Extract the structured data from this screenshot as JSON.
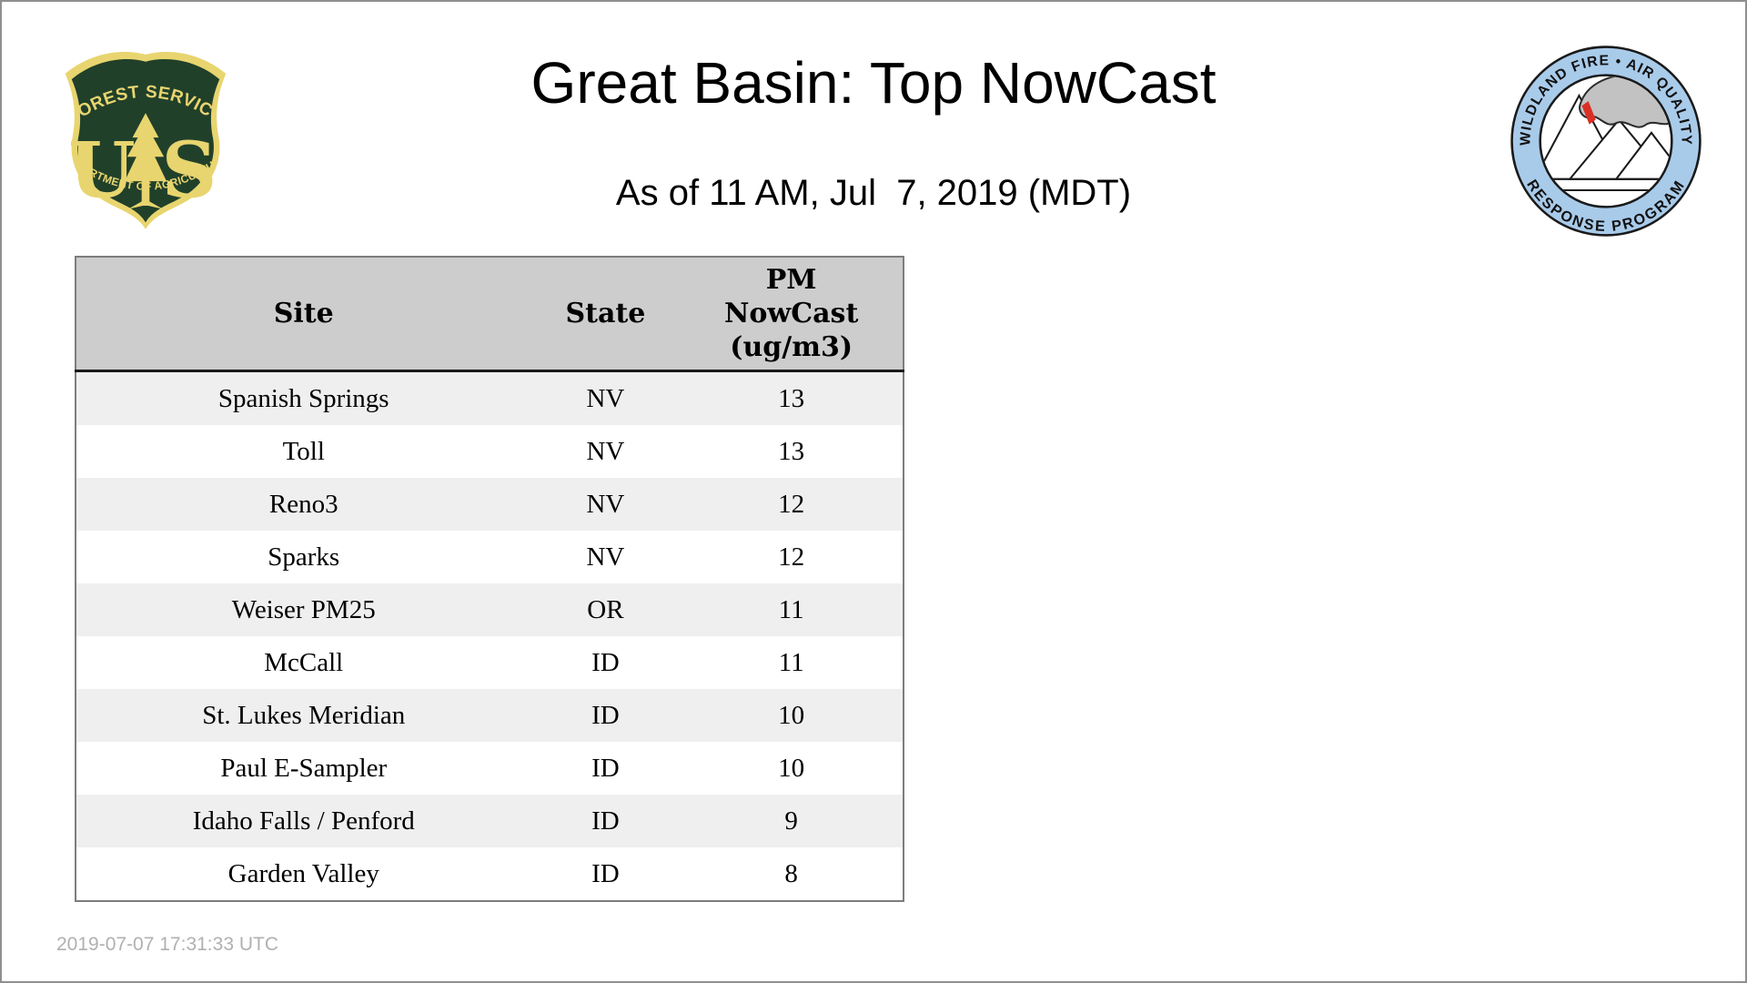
{
  "page": {
    "title": "Great Basin: Top NowCast",
    "subtitle": "As of 11 AM, Jul  7, 2019 (MDT)",
    "footer_timestamp": "2019-07-07 17:31:33 UTC",
    "background_color": "#FFFFFF",
    "frame_color": "#8F8F8F"
  },
  "logos": {
    "forest_service": {
      "arc_top": "FOREST SERVICE",
      "monogram_left": "U",
      "monogram_right": "S",
      "arc_bottom": "DEPARTMENT OF AGRICULTURE",
      "colors": {
        "gold": "#E8D56F",
        "green": "#21402A"
      }
    },
    "wfaqrp": {
      "top_text": "WILDLAND FIRE • AIR QUALITY",
      "bottom_text": "RESPONSE PROGRAM",
      "colors": {
        "ring": "#A9CBEA",
        "smoke": "#C2C2C2",
        "flame": "#D93025",
        "outline": "#1A1A1A"
      }
    }
  },
  "table": {
    "headers": [
      "Site",
      "State",
      "PM\nNowCast\n(ug/m3)"
    ],
    "rows": [
      {
        "site": "Spanish Springs",
        "state": "NV",
        "value": "13"
      },
      {
        "site": "Toll",
        "state": "NV",
        "value": "13"
      },
      {
        "site": "Reno3",
        "state": "NV",
        "value": "12"
      },
      {
        "site": "Sparks",
        "state": "NV",
        "value": "12"
      },
      {
        "site": "Weiser PM25",
        "state": "OR",
        "value": "11"
      },
      {
        "site": "McCall",
        "state": "ID",
        "value": "11"
      },
      {
        "site": "St. Lukes Meridian",
        "state": "ID",
        "value": "10"
      },
      {
        "site": "Paul E-Sampler",
        "state": "ID",
        "value": "10"
      },
      {
        "site": "Idaho Falls / Penford",
        "state": "ID",
        "value": "9"
      },
      {
        "site": "Garden Valley",
        "state": "ID",
        "value": "8"
      }
    ],
    "colors": {
      "header_bg": "#CDCDCD",
      "stripe_bg": "#EFEFEF",
      "border": "#7D7D7D",
      "header_rule": "#1A1A1A"
    }
  }
}
